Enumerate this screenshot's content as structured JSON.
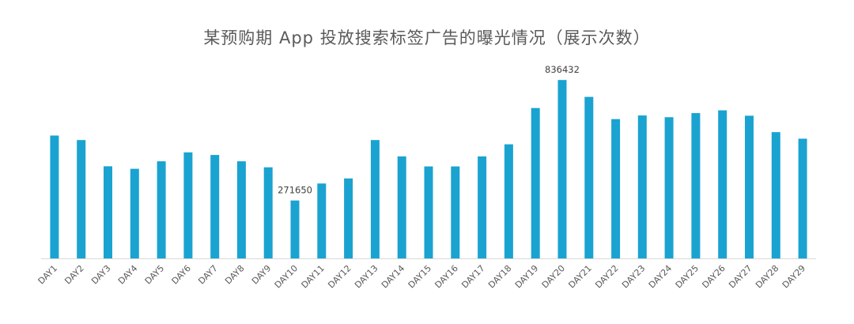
{
  "title": "某预购期 App 投放搜索标签广告的曝光情况（展示次数）",
  "chart_data": {
    "type": "bar",
    "title": "某预购期 App 投放搜索标签广告的曝光情况（展示次数）",
    "xlabel": "",
    "ylabel": "",
    "categories": [
      "DAY1",
      "DAY2",
      "DAY3",
      "DAY4",
      "DAY5",
      "DAY6",
      "DAY7",
      "DAY8",
      "DAY9",
      "DAY10",
      "DAY11",
      "DAY12",
      "DAY13",
      "DAY14",
      "DAY15",
      "DAY16",
      "DAY17",
      "DAY18",
      "DAY19",
      "DAY20",
      "DAY21",
      "DAY22",
      "DAY23",
      "DAY24",
      "DAY25",
      "DAY26",
      "DAY27",
      "DAY28",
      "DAY29"
    ],
    "values": [
      576000,
      555000,
      432000,
      420000,
      455000,
      497000,
      485000,
      455000,
      427000,
      271650,
      351000,
      375000,
      555000,
      478000,
      431000,
      431000,
      478000,
      535000,
      705000,
      836432,
      757000,
      653000,
      670000,
      662000,
      681000,
      694000,
      669000,
      592000,
      561000
    ],
    "data_labels": [
      {
        "index": 9,
        "text": "271650"
      },
      {
        "index": 19,
        "text": "836432"
      }
    ],
    "ylim": [
      0,
      900000
    ],
    "grid": false,
    "legend": "none",
    "bar_color": "#1aa3d1",
    "axis_color": "#d9d9d9"
  }
}
